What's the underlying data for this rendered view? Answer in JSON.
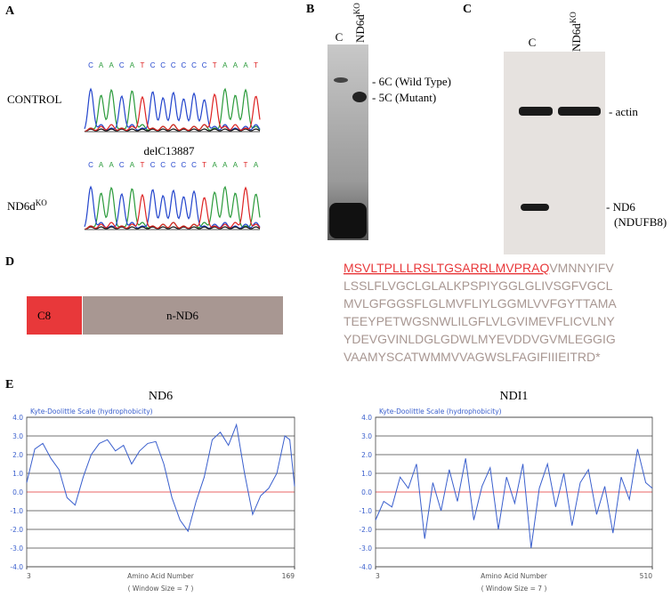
{
  "panel_a": {
    "label": "A",
    "control": {
      "name": "CONTROL",
      "bases": [
        "C",
        "A",
        "A",
        "C",
        "A",
        "T",
        "C",
        "C",
        "C",
        "C",
        "C",
        "C",
        "T",
        "A",
        "A",
        "A",
        "T"
      ]
    },
    "mutant": {
      "name": "ND6d",
      "name_sup": "KO",
      "note": "delC13887",
      "bases": [
        "C",
        "A",
        "A",
        "C",
        "A",
        "T",
        "C",
        "C",
        "C",
        "C",
        "C",
        "T",
        "A",
        "A",
        "A",
        "T",
        "A"
      ]
    }
  },
  "panel_b": {
    "label": "B",
    "lane_1": "C",
    "lane_2": "ND6d",
    "lane_2_sup": "KO",
    "band_1": "- 6C (Wild Type)",
    "band_2": "- 5C (Mutant)"
  },
  "panel_c": {
    "label": "C",
    "lane_1": "C",
    "lane_2": "ND6d",
    "lane_2_sup": "KO",
    "band_1": "- actin",
    "band_2": "- ND6",
    "band_2_note": "(NDUFB8)"
  },
  "panel_d": {
    "label": "D",
    "box_1": "C8",
    "box_2": "n-ND6",
    "sequence_highlight": "MSVLTPLLLRSLTGSARRLMVPRAQ",
    "sequence_lines": [
      "VMNNYIFV",
      "LSSLFLVGCLGLALKPSPIYGGLGLIVSGFVGCL",
      "MVLGFGGSFLGLMVFLIYLGGMLVVFGYTTAMA",
      "TEEYPETWGSNWLILGFLVLGVIMEVFLICVLNY",
      "YDEVGVINLDGLGDWLMYEVDDVGVMLEGGIG",
      "VAAMYSCATWMMVVAGWSLFAGIFIIIEITRD*"
    ]
  },
  "panel_e": {
    "label": "E",
    "plots": [
      {
        "title": "ND6",
        "scale_label": "Kyte-Doolittle Scale (hydrophobicity)",
        "x_label": "Amino Acid Number",
        "window_note": "( Window Size = 7 )",
        "color": "#3a5fcd",
        "zero_line_color": "#e03030",
        "x": [
          3,
          8,
          13,
          18,
          23,
          28,
          33,
          38,
          43,
          48,
          53,
          58,
          63,
          68,
          73,
          78,
          83,
          88,
          93,
          98,
          103,
          108,
          113,
          118,
          123,
          128,
          133,
          138,
          143,
          148,
          153,
          158,
          163,
          166,
          169
        ],
        "values": [
          0.5,
          2.3,
          2.6,
          1.8,
          1.2,
          -0.3,
          -0.7,
          0.8,
          2.0,
          2.6,
          2.8,
          2.2,
          2.5,
          1.5,
          2.2,
          2.6,
          2.7,
          1.5,
          -0.3,
          -1.5,
          -2.1,
          -0.5,
          0.8,
          2.8,
          3.2,
          2.5,
          3.6,
          1.0,
          -1.2,
          -0.2,
          0.2,
          1.0,
          3.0,
          2.8,
          0.3
        ],
        "xlim": [
          3,
          169
        ],
        "xticks": [
          3,
          169
        ],
        "ylim": [
          -4,
          4
        ],
        "yticks": [
          {
            "value": 4,
            "label": "4.0"
          },
          {
            "value": 3,
            "label": "3.0"
          },
          {
            "value": 2,
            "label": "2.0"
          },
          {
            "value": 1,
            "label": "1.0"
          },
          {
            "value": 0,
            "label": "0.0"
          },
          {
            "value": -1,
            "label": "-1.0"
          },
          {
            "value": -2,
            "label": "-2.0"
          },
          {
            "value": -3,
            "label": "-3.0"
          },
          {
            "value": -4,
            "label": "-4.0"
          }
        ]
      },
      {
        "title": "NDI1",
        "scale_label": "Kyte-Doolittle Scale (hydrophobicity)",
        "x_label": "Amino Acid Number",
        "window_note": "( Window Size = 7 )",
        "color": "#3a5fcd",
        "zero_line_color": "#e03030",
        "x": [
          3,
          18,
          33,
          48,
          63,
          78,
          93,
          108,
          123,
          138,
          153,
          168,
          183,
          198,
          213,
          228,
          243,
          258,
          273,
          288,
          303,
          318,
          333,
          348,
          363,
          378,
          393,
          408,
          423,
          438,
          453,
          468,
          483,
          498,
          510
        ],
        "values": [
          -1.5,
          -0.5,
          -0.8,
          0.8,
          0.2,
          1.5,
          -2.5,
          0.5,
          -1.0,
          1.2,
          -0.5,
          1.8,
          -1.5,
          0.3,
          1.3,
          -2.0,
          0.8,
          -0.6,
          1.5,
          -3.0,
          0.2,
          1.5,
          -0.8,
          1.0,
          -1.8,
          0.5,
          1.2,
          -1.2,
          0.3,
          -2.2,
          0.8,
          -0.4,
          2.3,
          0.5,
          0.2
        ],
        "xlim": [
          3,
          510
        ],
        "xticks": [
          3,
          510
        ],
        "ylim": [
          -4,
          4
        ],
        "yticks": [
          {
            "value": 4,
            "label": "4.0"
          },
          {
            "value": 3,
            "label": "3.0"
          },
          {
            "value": 2,
            "label": "2.0"
          },
          {
            "value": 1,
            "label": "1.0"
          },
          {
            "value": 0,
            "label": "0.0"
          },
          {
            "value": -1,
            "label": "-1.0"
          },
          {
            "value": -2,
            "label": "-2.0"
          },
          {
            "value": -3,
            "label": "-3.0"
          },
          {
            "value": -4,
            "label": "-4.0"
          }
        ]
      }
    ]
  }
}
